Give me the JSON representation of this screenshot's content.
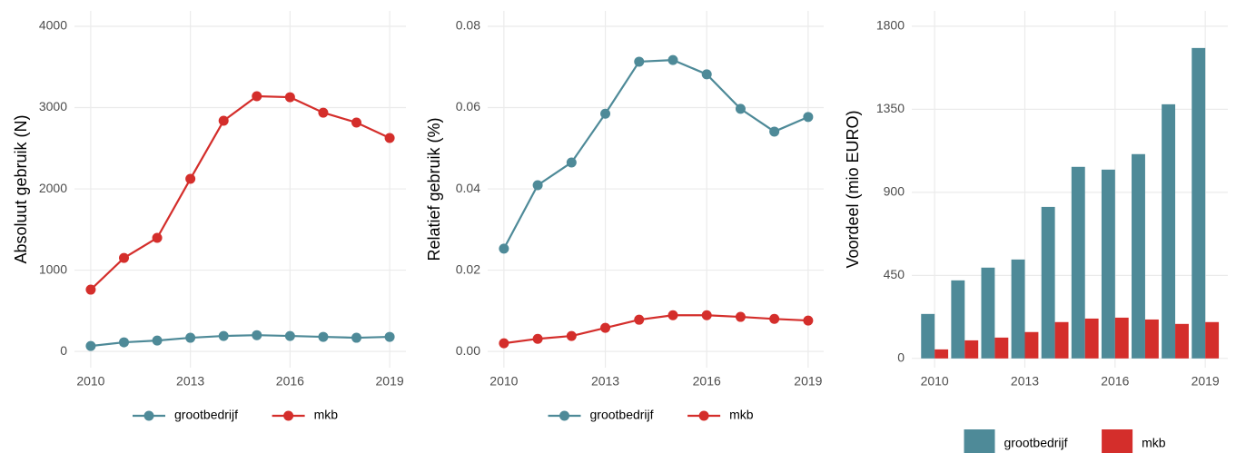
{
  "chart_data": [
    {
      "type": "line",
      "y_label": "Absoluut gebruik (N)",
      "x": [
        2010,
        2011,
        2012,
        2013,
        2014,
        2015,
        2016,
        2017,
        2018,
        2019
      ],
      "xlim": [
        2009.51,
        2019.49
      ],
      "xticks": [
        2010,
        2013,
        2016,
        2019
      ],
      "ylim": [
        -200,
        4190
      ],
      "yticks": [
        0,
        1000,
        2000,
        3000,
        4000
      ],
      "grid": true,
      "legend": "bottom",
      "series": [
        {
          "name": "grootbedrijf",
          "color": "#4e8a98",
          "values": [
            67,
            112,
            134,
            168,
            190,
            200,
            190,
            179,
            168,
            179
          ]
        },
        {
          "name": "mkb",
          "color": "#d42e2b",
          "values": [
            760,
            1150,
            1397,
            2123,
            2838,
            3140,
            3128,
            2938,
            2816,
            2626
          ]
        }
      ]
    },
    {
      "type": "line",
      "y_label": "Relatief gebruik (%)",
      "x": [
        2010,
        2011,
        2012,
        2013,
        2014,
        2015,
        2016,
        2017,
        2018,
        2019
      ],
      "xlim": [
        2009.52,
        2019.46
      ],
      "xticks": [
        2010,
        2013,
        2016,
        2019
      ],
      "ylim": [
        -0.004,
        0.0838
      ],
      "yticks": [
        {
          "value": 0,
          "label": "0.00"
        },
        0.02,
        0.04,
        0.06,
        0.08
      ],
      "grid": true,
      "legend": "bottom",
      "series": [
        {
          "name": "grootbedrijf",
          "color": "#4e8a98",
          "values": [
            0.0253,
            0.0409,
            0.0465,
            0.0585,
            0.0713,
            0.0717,
            0.0682,
            0.0597,
            0.0541,
            0.0577
          ]
        },
        {
          "name": "mkb",
          "color": "#d42e2b",
          "values": [
            0.002,
            0.0031,
            0.0038,
            0.0058,
            0.0078,
            0.0089,
            0.0089,
            0.0085,
            0.008,
            0.0076
          ]
        }
      ]
    },
    {
      "type": "bar",
      "y_label": "Voordeel (mio EURO)",
      "x": [
        2010,
        2011,
        2012,
        2013,
        2014,
        2015,
        2016,
        2017,
        2018,
        2019
      ],
      "xlim": [
        2009.24,
        2019.75
      ],
      "xticks": [
        2010,
        2013,
        2016,
        2019
      ],
      "ylim": [
        -50,
        1883
      ],
      "yticks": [
        0,
        450,
        900,
        1350,
        1800
      ],
      "grid": true,
      "legend": "bottom",
      "series": [
        {
          "name": "grootbedrijf",
          "color": "#4e8a98",
          "values": [
            241,
            423,
            492,
            536,
            821,
            1038,
            1023,
            1107,
            1377,
            1682
          ]
        },
        {
          "name": "mkb",
          "color": "#d42e2b",
          "values": [
            49,
            98,
            113,
            143,
            197,
            216,
            221,
            211,
            187,
            197
          ]
        }
      ]
    }
  ]
}
